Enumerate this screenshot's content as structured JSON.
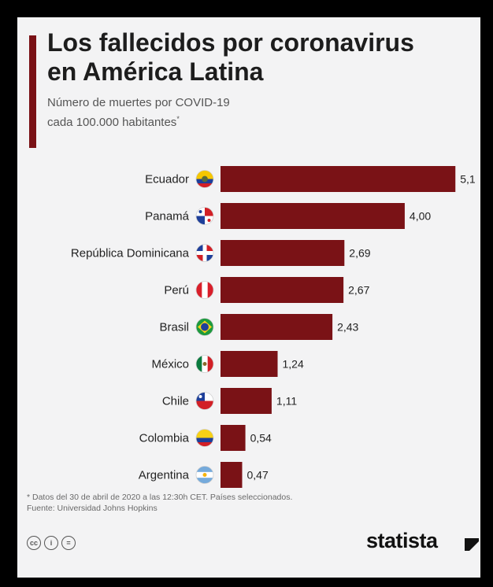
{
  "header": {
    "title_line1": "Los fallecidos por coronavirus",
    "title_line2": "en América Latina",
    "subtitle_line1": "Número de muertes por COVID-19",
    "subtitle_line2": "cada 100.000 habitantes",
    "subtitle_mark": "*"
  },
  "colors": {
    "bar": "#7a1216",
    "accent": "#7a1216",
    "card_background": "#f3f3f4"
  },
  "chart_data": {
    "type": "bar",
    "orientation": "horizontal",
    "categories": [
      "Ecuador",
      "Panamá",
      "República Dominicana",
      "Perú",
      "Brasil",
      "México",
      "Chile",
      "Colombia",
      "Argentina"
    ],
    "values": [
      5.1,
      4.0,
      2.69,
      2.67,
      2.43,
      1.24,
      1.11,
      0.54,
      0.47
    ],
    "value_labels": [
      "5,1",
      "4,00",
      "2,69",
      "2,67",
      "2,43",
      "1,24",
      "1,11",
      "0,54",
      "0,47"
    ],
    "flag_icons": [
      "ecuador-flag-icon",
      "panama-flag-icon",
      "dominican-republic-flag-icon",
      "peru-flag-icon",
      "brazil-flag-icon",
      "mexico-flag-icon",
      "chile-flag-icon",
      "colombia-flag-icon",
      "argentina-flag-icon"
    ],
    "xlim": [
      0,
      5.13
    ],
    "grid": false,
    "legend": "none"
  },
  "footer": {
    "note": "* Datos del 30 de abril de 2020 a las 12:30h CET. Países seleccionados.",
    "source": "Fuente: Universidad Johns Hopkins",
    "license_icons": [
      "cc-icon",
      "attribution-icon",
      "no-derivatives-icon"
    ],
    "license_glyphs": [
      "cc",
      "i",
      "="
    ],
    "brand": "statista"
  }
}
